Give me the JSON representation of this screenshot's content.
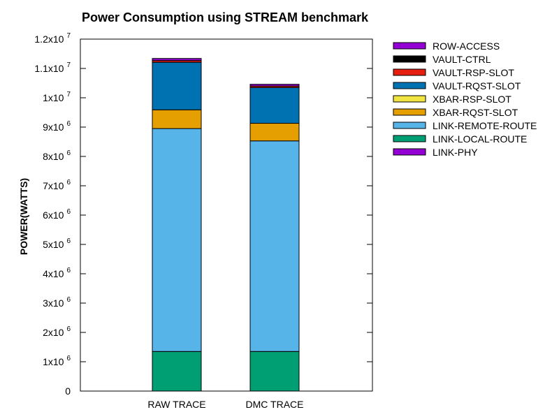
{
  "chart_data": {
    "type": "bar",
    "stacked": true,
    "title": "Power Consumption using STREAM benchmark",
    "xlabel": "",
    "ylabel": "POWER(WATTS)",
    "categories": [
      "RAW TRACE",
      "DMC TRACE"
    ],
    "ylim": [
      0,
      12000000
    ],
    "yticks": [
      {
        "value": 0,
        "mantissa": "0",
        "exp": ""
      },
      {
        "value": 1000000,
        "mantissa": "1x10",
        "exp": "6"
      },
      {
        "value": 2000000,
        "mantissa": "2x10",
        "exp": "6"
      },
      {
        "value": 3000000,
        "mantissa": "3x10",
        "exp": "6"
      },
      {
        "value": 4000000,
        "mantissa": "4x10",
        "exp": "6"
      },
      {
        "value": 5000000,
        "mantissa": "5x10",
        "exp": "6"
      },
      {
        "value": 6000000,
        "mantissa": "6x10",
        "exp": "6"
      },
      {
        "value": 7000000,
        "mantissa": "7x10",
        "exp": "6"
      },
      {
        "value": 8000000,
        "mantissa": "8x10",
        "exp": "6"
      },
      {
        "value": 9000000,
        "mantissa": "9x10",
        "exp": "6"
      },
      {
        "value": 10000000,
        "mantissa": "1x10",
        "exp": "7"
      },
      {
        "value": 11000000,
        "mantissa": "1.1x10",
        "exp": "7"
      },
      {
        "value": 12000000,
        "mantissa": "1.2x10",
        "exp": "7"
      }
    ],
    "grid": false,
    "legend_position": "right",
    "series": [
      {
        "name": "LINK-PHY",
        "color": "#9400d3",
        "values": [
          0,
          0
        ]
      },
      {
        "name": "LINK-LOCAL-ROUTE",
        "color": "#009e73",
        "values": [
          1350000,
          1350000
        ]
      },
      {
        "name": "LINK-REMOTE-ROUTE",
        "color": "#56b4e9",
        "values": [
          7600000,
          7180000
        ]
      },
      {
        "name": "XBAR-RQST-SLOT",
        "color": "#e69f00",
        "values": [
          640000,
          600000
        ]
      },
      {
        "name": "XBAR-RSP-SLOT",
        "color": "#f0e442",
        "values": [
          0,
          0
        ]
      },
      {
        "name": "VAULT-RQST-SLOT",
        "color": "#0072b2",
        "values": [
          1620000,
          1220000
        ]
      },
      {
        "name": "VAULT-RSP-SLOT",
        "color": "#e51e10",
        "values": [
          60000,
          50000
        ]
      },
      {
        "name": "VAULT-CTRL",
        "color": "#000000",
        "values": [
          0,
          0
        ]
      },
      {
        "name": "ROW-ACCESS",
        "color": "#9400d3",
        "values": [
          70000,
          60000
        ]
      }
    ],
    "legend_order": [
      "ROW-ACCESS",
      "VAULT-CTRL",
      "VAULT-RSP-SLOT",
      "VAULT-RQST-SLOT",
      "XBAR-RSP-SLOT",
      "XBAR-RQST-SLOT",
      "LINK-REMOTE-ROUTE",
      "LINK-LOCAL-ROUTE",
      "LINK-PHY"
    ]
  }
}
